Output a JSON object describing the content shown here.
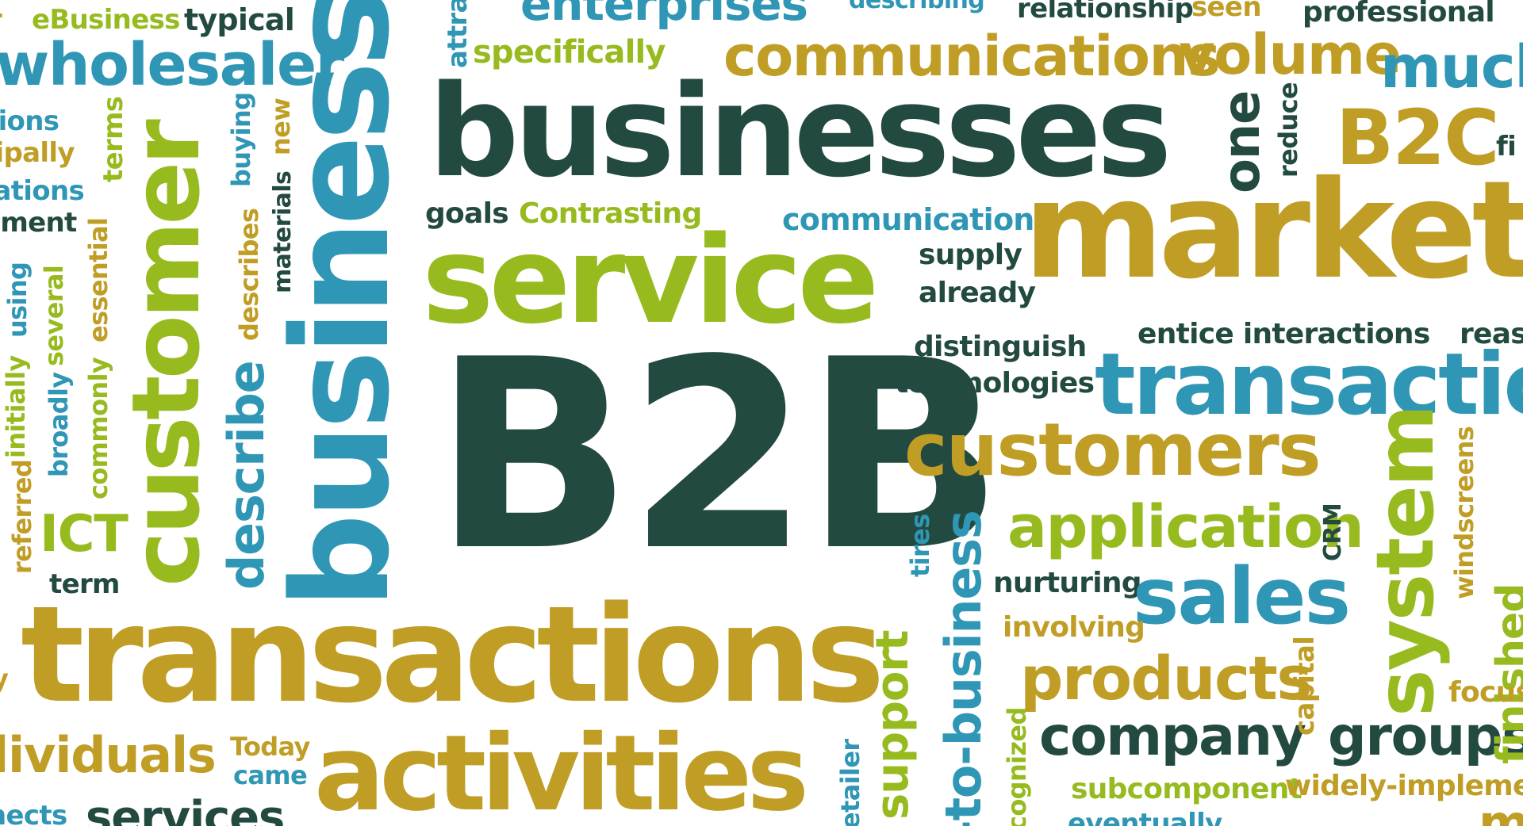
{
  "colors": {
    "dark": "#234a40",
    "teal": "#2f97b5",
    "lime": "#97bb1f",
    "gold": "#c09e26"
  },
  "words": {
    "b2b": "B2B",
    "businesses": "businesses",
    "service": "service",
    "marketing": "marketi",
    "transactions_bottom": "transactions",
    "activities": "activities",
    "business_vertical": "business",
    "customer_vertical": "customer",
    "wholesaler": "wholesaler",
    "ebusiness": "eBusiness",
    "typical": "typical",
    "enterprises": "enterprises",
    "describing": "describing",
    "relationship": "relationship",
    "seen": "seen",
    "professional": "professional",
    "communications": "communications",
    "volume": "volume",
    "much": "much",
    "specifically": "specifically",
    "attra": "attra",
    "b2c": "B2C",
    "one": "one",
    "reduce": "reduce",
    "fi": "fi",
    "goals": "goals",
    "contrasting": "Contrasting",
    "communication": "communication",
    "supply": "supply",
    "already": "already",
    "distinguish": "distinguish",
    "technologies": "technologies",
    "entice_interactions": "entice interactions",
    "reas": "reas",
    "transaction_right": "transactio",
    "customers": "customers",
    "application": "application",
    "crm": "CRM",
    "nurturing": "nurturing",
    "sales": "sales",
    "involving": "involving",
    "products": "products",
    "company": "company",
    "groups": "groups",
    "subcomponent": "subcomponent",
    "widely_implemented": "widely-implement",
    "eventually": "eventually",
    "system": "system",
    "windscreens": "windscreens",
    "finished": "finished",
    "focus": "focus",
    "capital": "capital",
    "support": "support",
    "to_business": "-to-business",
    "tires": "tires",
    "recognized": "cognized",
    "retailer": "etailer",
    "mo": "mo",
    "tions": "tions",
    "cipally": "cipally",
    "cations": "cations",
    "ement": "ement",
    "r_left": "r",
    "terms": "terms",
    "buying": "buying",
    "new": "new",
    "materials": "materials",
    "describes": "describes",
    "describe": "describe",
    "essential": "essential",
    "using": "using",
    "several": "several",
    "initially": "initially",
    "broadly": "broadly",
    "commonly": "commonly",
    "referred": "referred",
    "ict": "ICT",
    "term": "term",
    "y_left": "y",
    "individuals": "lividuals",
    "today": "Today",
    "came": "came",
    "services": "services",
    "nects": "nects"
  }
}
